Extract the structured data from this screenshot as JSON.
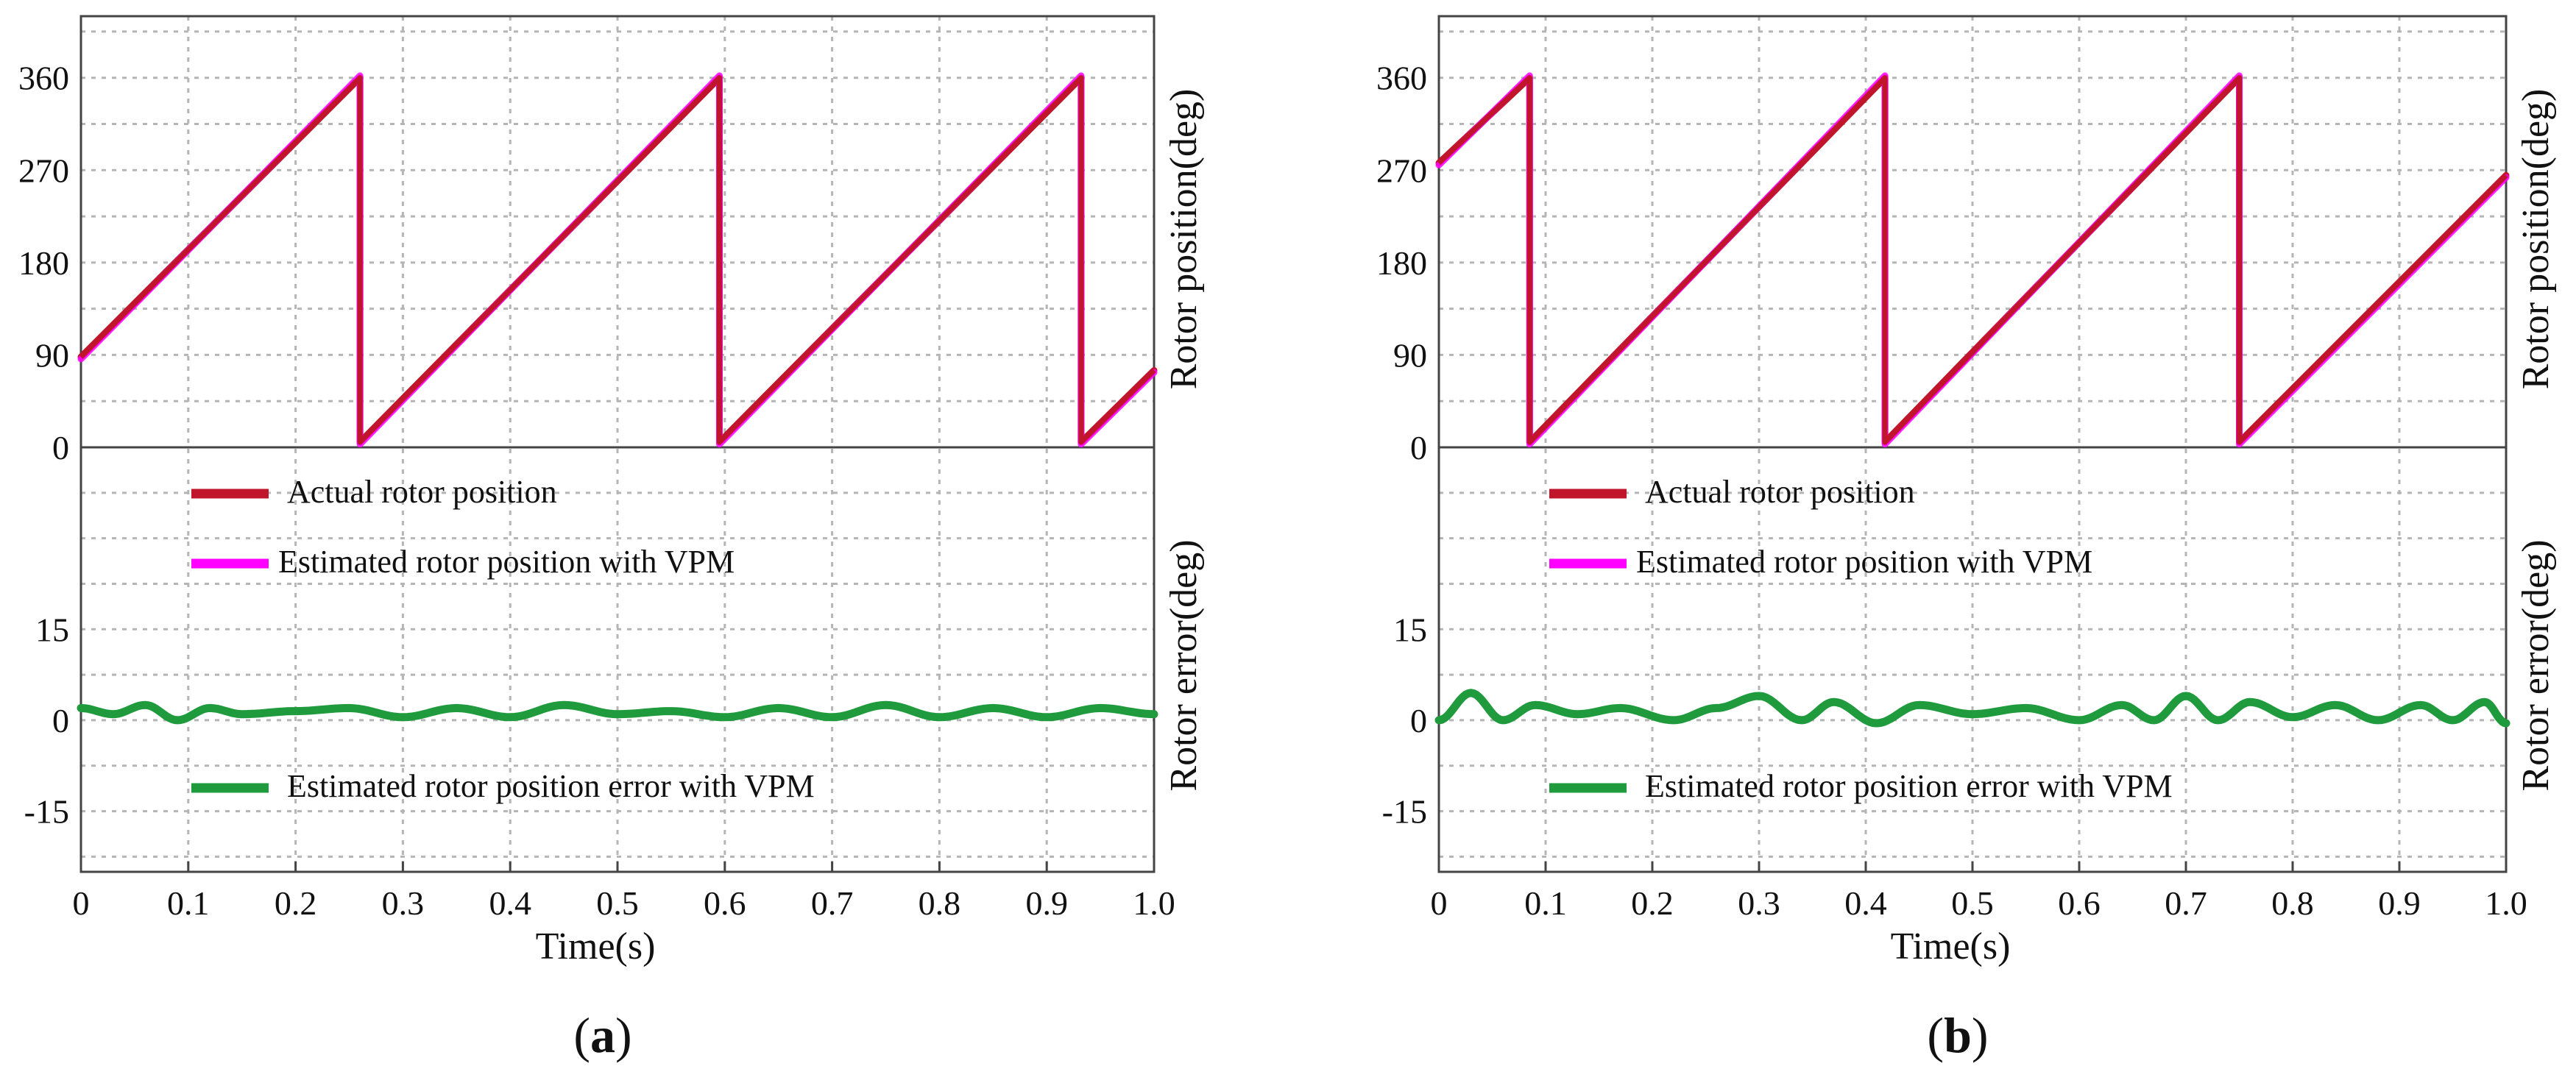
{
  "chart_data": [
    {
      "type": "line",
      "panel": "a",
      "caption_letter": "a",
      "caption_open": "(",
      "caption_close": ")",
      "xlabel": "Time(s)",
      "xlim": [
        0,
        1.0
      ],
      "xticks": [
        "0",
        "0.1",
        "0.2",
        "0.3",
        "0.4",
        "0.5",
        "0.6",
        "0.7",
        "0.8",
        "0.9",
        "1.0"
      ],
      "position_axis": {
        "ylabel": "Rotor position(deg)",
        "ylim": [
          0,
          420
        ],
        "ticks": [
          0,
          90,
          180,
          270,
          360
        ],
        "tick_labels": [
          "0",
          "90",
          "180",
          "270",
          "360"
        ]
      },
      "error_axis": {
        "ylabel": "Rotor error(deg)",
        "ylim": [
          -25,
          45
        ],
        "ticks": [
          -15,
          0,
          15
        ],
        "tick_labels": [
          "-15",
          "0",
          "15"
        ]
      },
      "wraps": [
        0.26,
        0.595,
        0.932
      ],
      "series": [
        {
          "name": "Actual rotor position",
          "color": "#c0152a",
          "axis": "position",
          "x": [
            0,
            0.26,
            0.26,
            0.595,
            0.595,
            0.932,
            0.932,
            1.0
          ],
          "y": [
            88,
            360,
            5,
            360,
            5,
            360,
            5,
            75
          ]
        },
        {
          "name": "Estimated rotor position with VPM",
          "color": "#ff00ff",
          "axis": "position",
          "x": [
            0,
            0.26,
            0.26,
            0.595,
            0.595,
            0.932,
            0.932,
            1.0
          ],
          "y": [
            86,
            362,
            3,
            362,
            3,
            362,
            3,
            73
          ]
        },
        {
          "name": "Estimated rotor position error with VPM",
          "color": "#1f9a3c",
          "axis": "error",
          "x": [
            0,
            0.03,
            0.06,
            0.09,
            0.12,
            0.15,
            0.2,
            0.25,
            0.3,
            0.35,
            0.4,
            0.45,
            0.5,
            0.55,
            0.6,
            0.65,
            0.7,
            0.75,
            0.8,
            0.85,
            0.9,
            0.95,
            1.0
          ],
          "y": [
            2,
            1,
            2.5,
            0,
            2,
            1,
            1.5,
            2,
            0.5,
            2,
            0.5,
            2.5,
            1,
            1.5,
            0.5,
            2,
            0.5,
            2.5,
            0.5,
            2,
            0.5,
            2,
            1
          ]
        }
      ]
    },
    {
      "type": "line",
      "panel": "b",
      "caption_letter": "b",
      "caption_open": "(",
      "caption_close": ")",
      "xlabel": "Time(s)",
      "xlim": [
        0,
        1.0
      ],
      "xticks": [
        "0",
        "0.1",
        "0.2",
        "0.3",
        "0.4",
        "0.5",
        "0.6",
        "0.7",
        "0.8",
        "0.9",
        "1.0"
      ],
      "position_axis": {
        "ylabel": "Rotor position(deg)",
        "ylim": [
          0,
          420
        ],
        "ticks": [
          0,
          90,
          180,
          270,
          360
        ],
        "tick_labels": [
          "0",
          "90",
          "180",
          "270",
          "360"
        ]
      },
      "error_axis": {
        "ylabel": "Rotor error(deg)",
        "ylim": [
          -25,
          45
        ],
        "ticks": [
          -15,
          0,
          15
        ],
        "tick_labels": [
          "-15",
          "0",
          "15"
        ]
      },
      "wraps": [
        0.085,
        0.418,
        0.75
      ],
      "series": [
        {
          "name": "Actual rotor position",
          "color": "#c0152a",
          "axis": "position",
          "x": [
            0,
            0.085,
            0.085,
            0.418,
            0.418,
            0.75,
            0.75,
            1.0
          ],
          "y": [
            277,
            360,
            5,
            360,
            5,
            360,
            5,
            265
          ]
        },
        {
          "name": "Estimated rotor position with VPM",
          "color": "#ff00ff",
          "axis": "position",
          "x": [
            0,
            0.085,
            0.085,
            0.418,
            0.418,
            0.75,
            0.75,
            1.0
          ],
          "y": [
            275,
            362,
            3,
            362,
            3,
            362,
            3,
            263
          ]
        },
        {
          "name": "Estimated rotor position error with VPM",
          "color": "#1f9a3c",
          "axis": "error",
          "x": [
            0,
            0.03,
            0.06,
            0.09,
            0.13,
            0.17,
            0.22,
            0.26,
            0.3,
            0.34,
            0.37,
            0.41,
            0.45,
            0.5,
            0.55,
            0.6,
            0.64,
            0.67,
            0.7,
            0.73,
            0.76,
            0.8,
            0.84,
            0.88,
            0.92,
            0.95,
            0.98,
            1.0
          ],
          "y": [
            0,
            4.5,
            0,
            2.5,
            1,
            2,
            0,
            2,
            4,
            0,
            3,
            -0.5,
            2.5,
            1,
            2,
            0,
            2.5,
            0,
            4,
            0,
            3,
            0.5,
            2.5,
            0,
            2.5,
            0,
            3,
            -0.5
          ]
        }
      ]
    }
  ]
}
